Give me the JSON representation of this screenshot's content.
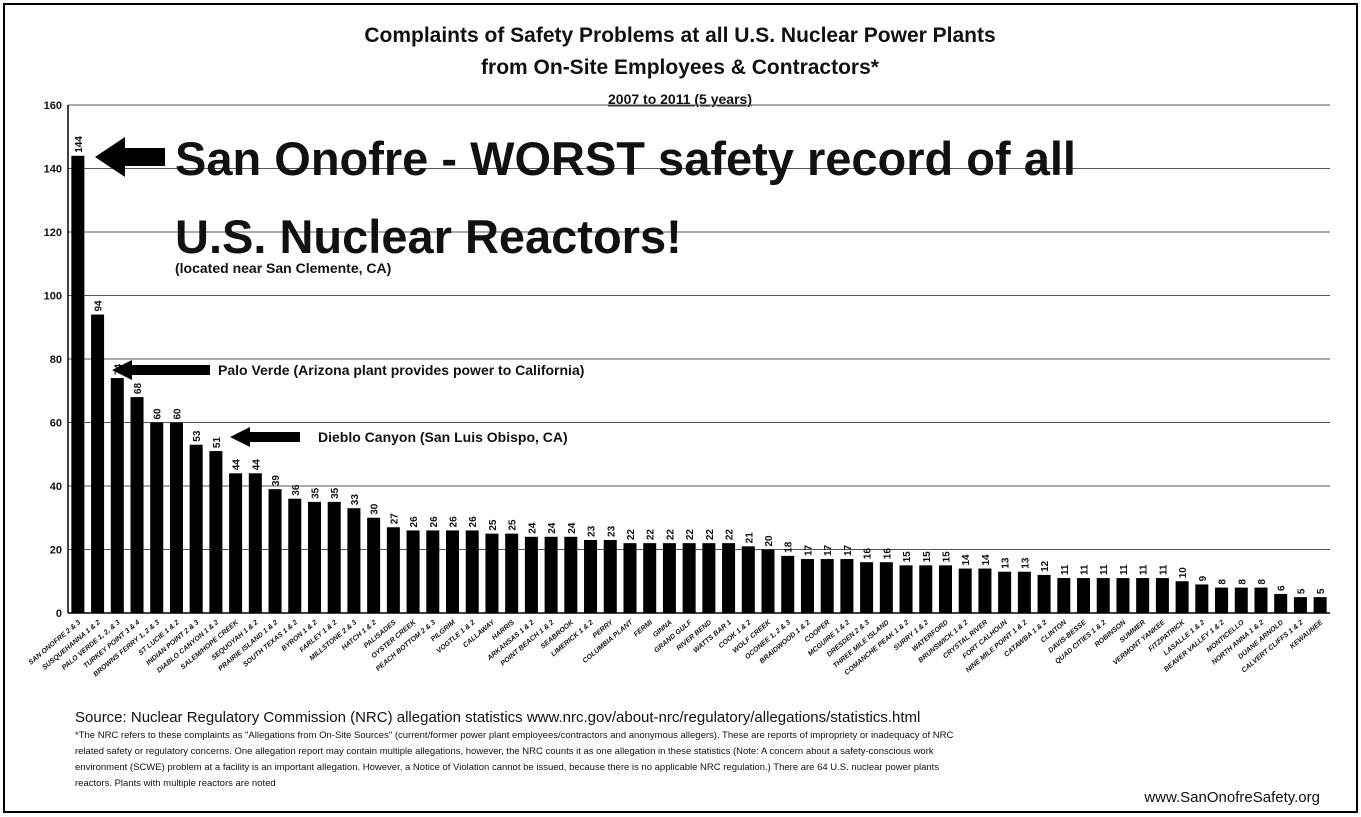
{
  "chart_data": {
    "type": "bar",
    "title": "Complaints of Safety Problems at all U.S. Nuclear Power Plants",
    "subtitle": "from On-Site Employees & Contractors*",
    "period": "2007 to 2011 (5 years)",
    "annotations": [
      "San Onofre - WORST safety record of all",
      "U.S. Nuclear Reactors!",
      "(located near San Clemente, CA)",
      "Palo Verde (Arizona plant provides power to California)",
      "Dieblo Canyon (San Luis Obispo, CA)"
    ],
    "source": "Source: Nuclear Regulatory Commission (NRC) allegation statistics  www.nrc.gov/about-nrc/regulatory/allegations/statistics.html",
    "footnote": [
      "*The NRC refers to these complaints as \"Allegations from On-Site Sources\" (current/former power plant employees/contractors and anonymous allegers). These are reports of impropriety or inadequacy of NRC",
      "related safety or regulatory concerns.  One allegation report may contain multiple allegations, however, the NRC counts it as one allegation in these statistics (Note: A concern about a safety-conscious work",
      "environment (SCWE) problem at a facility is an important allegation. However, a Notice of Violation cannot be issued, because there is no applicable NRC regulation.)  There are 64 U.S. nuclear power plants",
      "reactors. Plants with multiple reactors are noted"
    ],
    "website": "www.SanOnofreSafety.org",
    "categories": [
      "SAN ONOFRE 2 & 3",
      "SUSQUEHANNA 1 & 2",
      "PALO VERDE 1, 2, & 3",
      "TURKEY POINT 3 & 4",
      "BROWNS FERRY 1, 2 & 3",
      "ST LUCIE 1 & 2",
      "INDIAN POINT 2 & 3",
      "DIABLO CANYON 1 & 2",
      "SALEM/HOPE CREEK",
      "SEQUOYAH 1 & 2",
      "PRAIRIE ISLAND 1 & 2",
      "SOUTH TEXAS 1 & 2",
      "BYRON 1 & 2",
      "FARLEY 1 & 2",
      "MILLSTONE 2 & 3",
      "HATCH 1 & 2",
      "PALISADES",
      "OYSTER CREEK",
      "PEACH BOTTOM 2 & 3",
      "PILGRIM",
      "VOGTLE 1 & 2",
      "CALLAWAY",
      "HARRIS",
      "ARKANSAS 1 & 2",
      "POINT BEACH 1 & 2",
      "SEABROOK",
      "LIMERICK 1 & 2",
      "PERRY",
      "COLUMBIA PLANT",
      "FERMI",
      "GINNA",
      "GRAND GULF",
      "RIVER BEND",
      "WATTS BAR 1",
      "COOK 1 & 2",
      "WOLF CREEK",
      "OCONEE 1, 2 & 3",
      "BRAIDWOOD 1 & 2",
      "COOPER",
      "MCGUIRE 1 & 2",
      "DRESDEN 2 & 3",
      "THREE MILE ISLAND",
      "COMANCHE PEAK 1 & 2",
      "SURRY 1 & 2",
      "WATERFORD",
      "BRUNSWICK 1 & 2",
      "CRYSTAL RIVER",
      "FORT CALHOUN",
      "NINE MILE POINT 1 & 2",
      "CATAWBA 1 & 2",
      "CLINTON",
      "DAVIS-BESSE",
      "QUAD CITIES 1 & 2",
      "ROBINSON",
      "SUMMER",
      "VERMONT YANKEE",
      "FITZPATRICK",
      "LASALLE 1 & 2",
      "BEAVER VALLEY 1 & 2",
      "MONTICELLO",
      "NORTH ANNA 1 & 2",
      "DUANE ARNOLD",
      "CALVERT CLIFFS 1 & 2",
      "KEWAUNEE"
    ],
    "values": [
      144,
      94,
      74,
      68,
      60,
      60,
      53,
      51,
      44,
      44,
      39,
      36,
      35,
      35,
      33,
      30,
      27,
      26,
      26,
      26,
      26,
      25,
      25,
      24,
      24,
      24,
      23,
      23,
      22,
      22,
      22,
      22,
      22,
      22,
      21,
      20,
      18,
      17,
      17,
      17,
      16,
      16,
      15,
      15,
      15,
      14,
      14,
      13,
      13,
      12,
      11,
      11,
      11,
      11,
      11,
      11,
      10,
      9,
      8,
      8,
      8,
      6,
      5,
      5
    ],
    "color": "#000000",
    "ylim": [
      0,
      160
    ],
    "yticks": [
      0,
      20,
      40,
      60,
      80,
      100,
      120,
      140,
      160
    ],
    "grid": true
  }
}
